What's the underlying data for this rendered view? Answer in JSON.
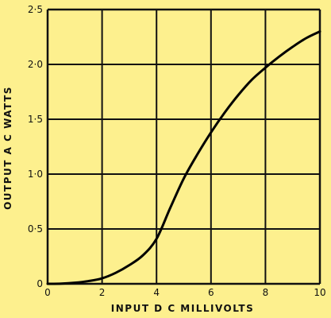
{
  "chart_data": {
    "type": "line",
    "title": "",
    "xlabel": "INPUT D C MILLIVOLTS",
    "ylabel": "OUTPUT A C WATTS",
    "xlim": [
      0,
      10
    ],
    "ylim": [
      0,
      2.5
    ],
    "grid": true,
    "x_ticks": [
      0,
      2,
      4,
      6,
      8,
      10
    ],
    "y_ticks": [
      0,
      0.5,
      1.0,
      1.5,
      2.0,
      2.5
    ],
    "x_tick_labels": [
      "0",
      "2",
      "4",
      "6",
      "8",
      "10"
    ],
    "y_tick_labels": [
      "0",
      "0·5",
      "1·0",
      "1·5",
      "2·0",
      "2·5"
    ],
    "series": [
      {
        "x": [
          0,
          0.5,
          1.0,
          1.5,
          2.0,
          2.5,
          3.0,
          3.5,
          4.0,
          4.5,
          5.0,
          5.5,
          6.0,
          6.5,
          7.0,
          7.5,
          8.0,
          8.5,
          9.0,
          9.5,
          10.0
        ],
        "y": [
          0,
          0.002,
          0.01,
          0.025,
          0.05,
          0.1,
          0.17,
          0.26,
          0.41,
          0.69,
          0.96,
          1.18,
          1.38,
          1.56,
          1.72,
          1.86,
          1.97,
          2.07,
          2.16,
          2.24,
          2.3
        ]
      }
    ],
    "colors": {
      "background": "#fdf08e",
      "grid": "#111111",
      "line": "#000000"
    }
  }
}
